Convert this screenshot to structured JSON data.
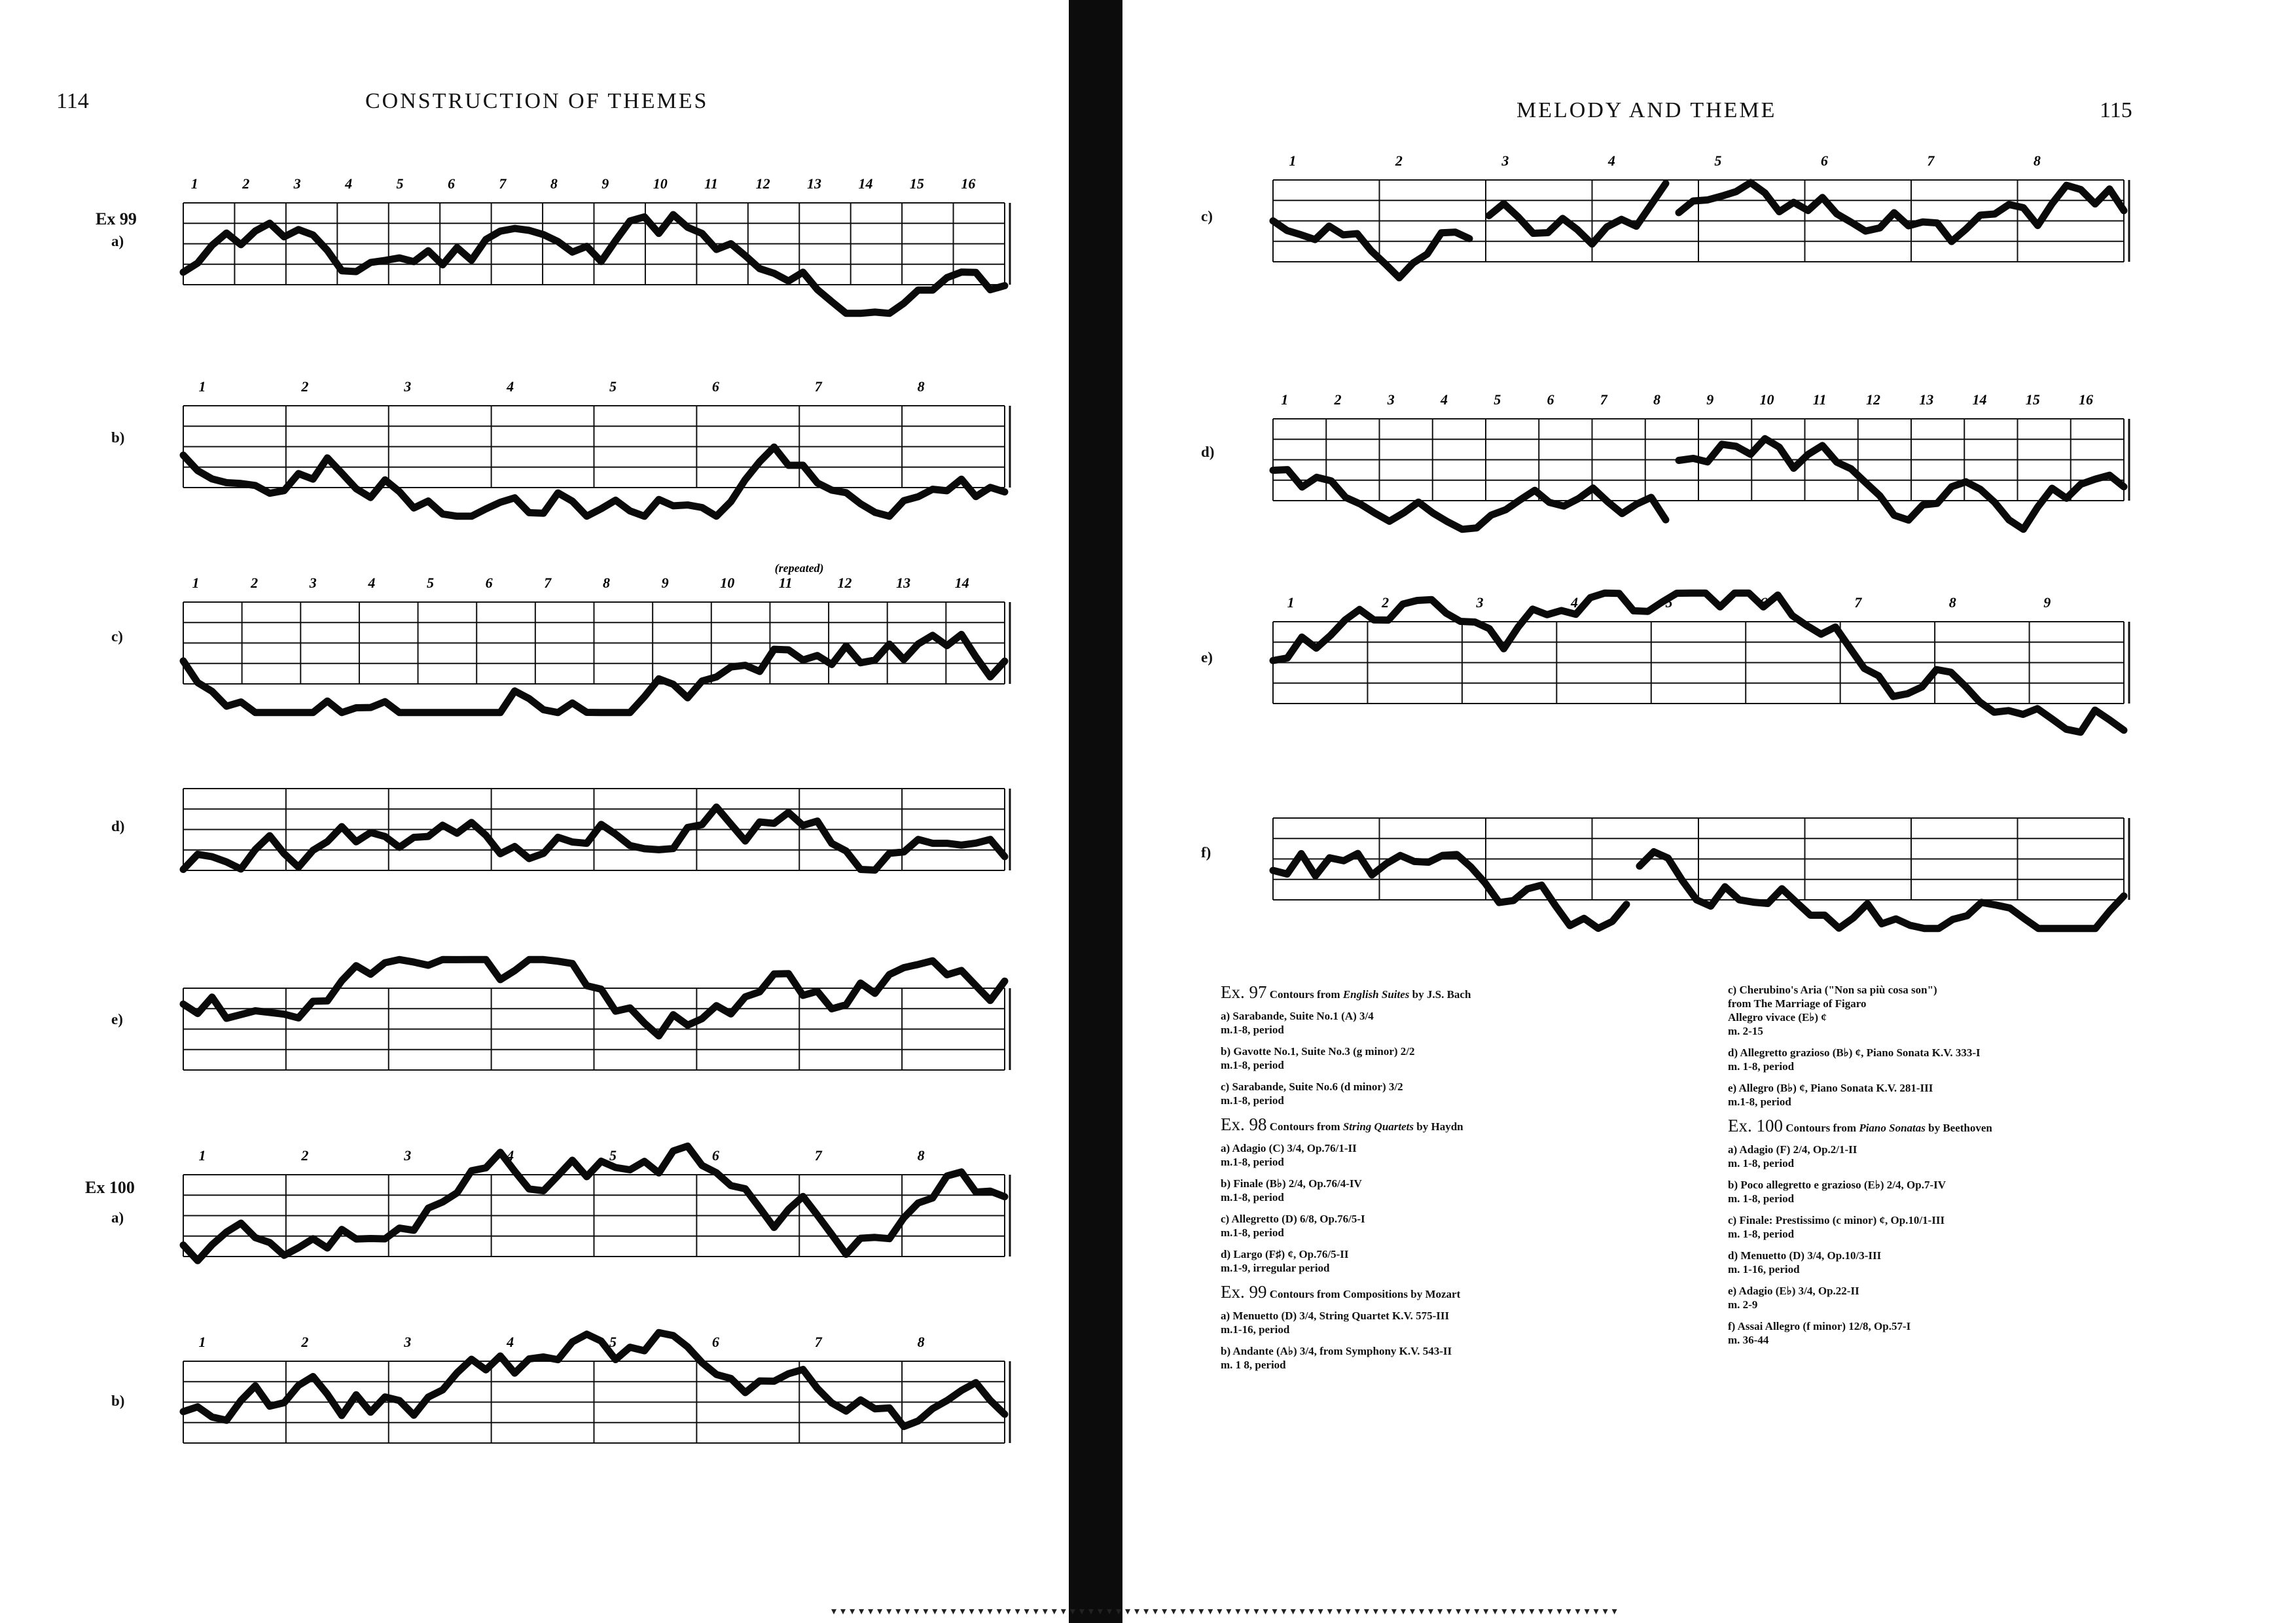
{
  "left_page": {
    "page_number": "114",
    "running_head": "CONSTRUCTION OF THEMES",
    "ex99_label": "Ex 99",
    "ex100_label": "Ex 100",
    "systems": [
      {
        "label": "a)",
        "numbers": [
          "1",
          "2",
          "3",
          "4",
          "5",
          "6",
          "7",
          "8",
          "9",
          "10",
          "11",
          "12",
          "13",
          "14",
          "15",
          "16"
        ]
      },
      {
        "label": "b)",
        "numbers": [
          "1",
          "2",
          "3",
          "4",
          "5",
          "6",
          "7",
          "8"
        ]
      },
      {
        "label": "c)",
        "numbers": [
          "1",
          "2",
          "3",
          "4",
          "5",
          "6",
          "7",
          "8",
          "9",
          "10",
          "11",
          "12",
          "13",
          "14"
        ],
        "annotation": "(repeated)"
      },
      {
        "label": "d)",
        "numbers": []
      },
      {
        "label": "e)",
        "numbers": []
      },
      {
        "label": "a)",
        "numbers": [
          "1",
          "2",
          "3",
          "4",
          "5",
          "6",
          "7",
          "8"
        ]
      },
      {
        "label": "b)",
        "numbers": [
          "1",
          "2",
          "3",
          "4",
          "5",
          "6",
          "7",
          "8"
        ]
      }
    ]
  },
  "right_page": {
    "page_number": "115",
    "running_head": "MELODY AND THEME",
    "systems": [
      {
        "label": "c)",
        "numbers": [
          "1",
          "2",
          "3",
          "4",
          "5",
          "6",
          "7",
          "8"
        ]
      },
      {
        "label": "d)",
        "numbers": [
          "1",
          "2",
          "3",
          "4",
          "5",
          "6",
          "7",
          "8",
          "9",
          "10",
          "11",
          "12",
          "13",
          "14",
          "15",
          "16"
        ]
      },
      {
        "label": "e)",
        "numbers": [
          "1",
          "2",
          "3",
          "4",
          "5",
          "6",
          "7",
          "8",
          "9"
        ]
      },
      {
        "label": "f)",
        "numbers": []
      }
    ],
    "captions_left": [
      {
        "type": "head",
        "num": "Ex. 97",
        "text": "Contours from",
        "italic": "English Suites",
        "tail": "by J.S. Bach"
      },
      {
        "type": "item",
        "line1": "a) Sarabande, Suite No.1 (A) 3/4",
        "line2": "m.1-8, period"
      },
      {
        "type": "item",
        "line1": "b) Gavotte No.1, Suite No.3 (g minor) 2/2",
        "line2": "m.1-8, period"
      },
      {
        "type": "item",
        "line1": "c) Sarabande, Suite No.6 (d minor) 3/2",
        "line2": "m.1-8, period"
      },
      {
        "type": "head",
        "num": "Ex. 98",
        "text": "Contours from",
        "italic": "String Quartets",
        "tail": "by Haydn"
      },
      {
        "type": "item",
        "line1": "a) Adagio (C) 3/4, Op.76/1-II",
        "line2": "m.1-8, period"
      },
      {
        "type": "item",
        "line1": "b) Finale (B♭) 2/4, Op.76/4-IV",
        "line2": "m.1-8, period"
      },
      {
        "type": "item",
        "line1": "c) Allegretto (D) 6/8, Op.76/5-I",
        "line2": "m.1-8, period"
      },
      {
        "type": "item",
        "line1": "d) Largo (F♯) ¢, Op.76/5-II",
        "line2": "m.1-9, irregular period"
      },
      {
        "type": "head",
        "num": "Ex. 99",
        "text": "Contours from Compositions by Mozart",
        "italic": "",
        "tail": ""
      },
      {
        "type": "item",
        "line1": "a) Menuetto (D) 3/4, String Quartet K.V. 575-III",
        "line2": "m.1-16, period"
      },
      {
        "type": "item",
        "line1": "b) Andante (A♭) 3/4, from Symphony K.V. 543-II",
        "line2": "m. 1 8, period"
      }
    ],
    "captions_right": [
      {
        "type": "item",
        "line1": "c) Cherubino's Aria (\"Non sa più cosa son\")",
        "line2": "from The Marriage of Figaro",
        "line3": "Allegro vivace (E♭) ¢",
        "line4": "m. 2-15"
      },
      {
        "type": "item",
        "line1": "d) Allegretto grazioso (B♭) ¢, Piano Sonata K.V. 333-I",
        "line2": "m. 1-8, period"
      },
      {
        "type": "item",
        "line1": "e) Allegro (B♭) ¢, Piano Sonata K.V. 281-III",
        "line2": "m.1-8, period"
      },
      {
        "type": "head",
        "num": "Ex. 100",
        "text": "Contours from",
        "italic": "Piano Sonatas",
        "tail": "by Beethoven"
      },
      {
        "type": "item",
        "line1": "a) Adagio (F) 2/4, Op.2/1-II",
        "line2": "m. 1-8, period"
      },
      {
        "type": "item",
        "line1": "b) Poco allegretto e grazioso (E♭) 2/4, Op.7-IV",
        "line2": "m. 1-8, period"
      },
      {
        "type": "item",
        "line1": "c) Finale: Prestissimo (c minor) ¢, Op.10/1-III",
        "line2": "m. 1-8, period"
      },
      {
        "type": "item",
        "line1": "d) Menuetto (D) 3/4, Op.10/3-III",
        "line2": "m. 1-16, period"
      },
      {
        "type": "item",
        "line1": "e) Adagio (E♭) 3/4, Op.22-II",
        "line2": "m. 2-9"
      },
      {
        "type": "item",
        "line1": "f) Assai Allegro (f minor) 12/8, Op.57-I",
        "line2": "m. 36-44"
      }
    ]
  }
}
